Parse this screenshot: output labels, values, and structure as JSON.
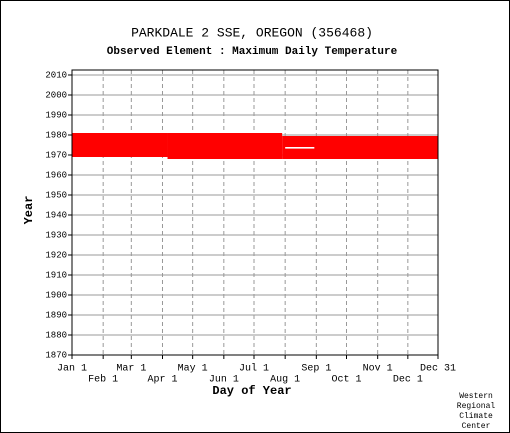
{
  "chart_data": {
    "type": "range",
    "title": "PARKDALE 2 SSE, OREGON   (356468)",
    "subtitle": "Observed Element : Maximum Daily Temperature",
    "x_label": "Day of Year",
    "y_label": "Year",
    "credit": [
      "Western",
      "Regional",
      "Climate",
      "Center"
    ],
    "xlim": [
      1,
      365
    ],
    "ylim": [
      1870,
      2012.5
    ],
    "xticks": [
      {
        "value": 1,
        "label": "Jan 1"
      },
      {
        "value": 32,
        "label": "Feb 1"
      },
      {
        "value": 60,
        "label": "Mar 1"
      },
      {
        "value": 91,
        "label": "Apr 1"
      },
      {
        "value": 121,
        "label": "May 1"
      },
      {
        "value": 152,
        "label": "Jun 1"
      },
      {
        "value": 182,
        "label": "Jul 1"
      },
      {
        "value": 213,
        "label": "Aug 1"
      },
      {
        "value": 244,
        "label": "Sep 1"
      },
      {
        "value": 274,
        "label": "Oct 1"
      },
      {
        "value": 305,
        "label": "Nov 1"
      },
      {
        "value": 335,
        "label": "Dec 1"
      },
      {
        "value": 365,
        "label": "Dec 31"
      }
    ],
    "yticks": [
      1870,
      1880,
      1890,
      1900,
      1910,
      1920,
      1930,
      1940,
      1950,
      1960,
      1970,
      1980,
      1990,
      2000,
      2010
    ],
    "grid": true,
    "series": [
      {
        "color": "#ff0000",
        "ranges": [
          {
            "days": [
              1,
              96
            ],
            "years": [
              1969,
              1981
            ]
          },
          {
            "days": [
              96,
              210
            ],
            "years": [
              1968,
              1981
            ]
          },
          {
            "days": [
              210,
              365
            ],
            "years": [
              1968,
              1979.5
            ]
          }
        ]
      },
      {
        "color": "#ffffff",
        "ranges": [
          {
            "days": [
              213,
              242
            ],
            "years": [
              1973.2,
              1974
            ]
          }
        ]
      }
    ]
  }
}
